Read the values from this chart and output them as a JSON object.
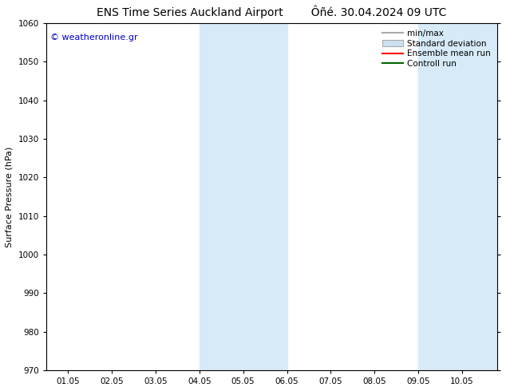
{
  "title_left": "ENS Time Series Auckland Airport",
  "title_right": "Ôñé. 30.04.2024 09 UTC",
  "ylabel": "Surface Pressure (hPa)",
  "ylim": [
    970,
    1060
  ],
  "yticks": [
    970,
    980,
    990,
    1000,
    1010,
    1020,
    1030,
    1040,
    1050,
    1060
  ],
  "xtick_labels": [
    "01.05",
    "02.05",
    "03.05",
    "04.05",
    "05.05",
    "06.05",
    "07.05",
    "08.05",
    "09.05",
    "10.05"
  ],
  "xtick_positions": [
    0,
    1,
    2,
    3,
    4,
    5,
    6,
    7,
    8,
    9
  ],
  "xlim": [
    -0.5,
    9.8
  ],
  "shaded_bands": [
    {
      "x_start": 3.0,
      "x_end": 5.0
    },
    {
      "x_start": 8.0,
      "x_end": 9.8
    }
  ],
  "shade_color": "#d6eaf8",
  "shade_alpha": 1.0,
  "watermark_text": "© weatheronline.gr",
  "watermark_color": "#0000cc",
  "watermark_fontsize": 8,
  "legend_items": [
    {
      "label": "min/max",
      "color": "#aaaaaa",
      "lw": 1.5,
      "style": "line"
    },
    {
      "label": "Standard deviation",
      "color": "#cde0f0",
      "lw": 6,
      "style": "band"
    },
    {
      "label": "Ensemble mean run",
      "color": "#ff0000",
      "lw": 1.5,
      "style": "line"
    },
    {
      "label": "Controll run",
      "color": "#006600",
      "lw": 1.5,
      "style": "line"
    }
  ],
  "bg_color": "#ffffff",
  "axes_bg_color": "#ffffff",
  "title_fontsize": 10,
  "axis_label_fontsize": 8,
  "tick_fontsize": 7.5
}
